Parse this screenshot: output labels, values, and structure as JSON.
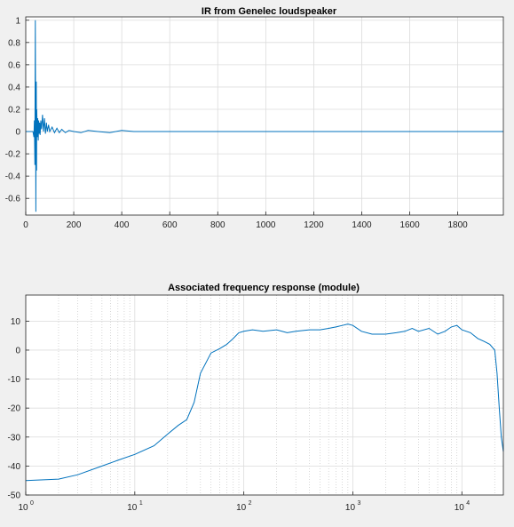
{
  "chart_data": [
    {
      "type": "line",
      "title": "IR from Genelec loudspeaker",
      "xlabel": "",
      "ylabel": "",
      "xlim": [
        0,
        1990
      ],
      "ylim": [
        -0.75,
        1.03
      ],
      "xticks": [
        0,
        200,
        400,
        600,
        800,
        1000,
        1200,
        1400,
        1600,
        1800
      ],
      "xtick_labels": [
        "0",
        "200",
        "400",
        "600",
        "800",
        "1000",
        "1200",
        "1400",
        "1600",
        "1800"
      ],
      "yticks": [
        1,
        0.8,
        0.6,
        0.4,
        0.2,
        0,
        -0.2,
        -0.4,
        -0.6
      ],
      "ytick_labels": [
        "1",
        "0.8",
        "0.6",
        "0.4",
        "0.2",
        "0",
        "-0.2",
        "-0.4",
        "-0.6"
      ],
      "grid": true,
      "line_color": "#0072bd",
      "series": [
        {
          "x": [
            0,
            30,
            34,
            36,
            38,
            39,
            40,
            41,
            42,
            43,
            44,
            45,
            46,
            48,
            50,
            52,
            54,
            56,
            58,
            60,
            63,
            66,
            70,
            74,
            78,
            82,
            86,
            90,
            95,
            100,
            110,
            120,
            130,
            140,
            150,
            165,
            180,
            200,
            230,
            260,
            300,
            350,
            400,
            450,
            500,
            600,
            800,
            1000,
            1400,
            1990
          ],
          "y": [
            0,
            0,
            -0.05,
            0.1,
            -0.3,
            0.3,
            1.0,
            0.2,
            -0.72,
            -0.2,
            0.45,
            -0.35,
            0.2,
            -0.05,
            0.12,
            -0.08,
            0.1,
            -0.02,
            0.08,
            -0.03,
            0.1,
            0.02,
            0.15,
            0.0,
            0.12,
            -0.02,
            0.08,
            0.0,
            0.06,
            0.0,
            0.04,
            -0.01,
            0.03,
            -0.01,
            0.02,
            -0.01,
            0.01,
            0.0,
            -0.01,
            0.01,
            0.0,
            -0.01,
            0.01,
            0.0,
            0.0,
            0.0,
            0.0,
            0.0,
            0.0,
            0.0
          ]
        }
      ]
    },
    {
      "type": "line",
      "title": "Associated frequency response (module)",
      "xlabel": "",
      "ylabel": "",
      "xscale": "log",
      "xlim": [
        1,
        24000
      ],
      "ylim": [
        -50,
        19
      ],
      "xticks": [
        1,
        10,
        100,
        1000,
        10000
      ],
      "xtick_labels": [
        {
          "base": "10",
          "exp": "0"
        },
        {
          "base": "10",
          "exp": "1"
        },
        {
          "base": "10",
          "exp": "2"
        },
        {
          "base": "10",
          "exp": "3"
        },
        {
          "base": "10",
          "exp": "4"
        }
      ],
      "yticks": [
        10,
        0,
        -10,
        -20,
        -30,
        -40,
        -50
      ],
      "ytick_labels": [
        "10",
        "0",
        "-10",
        "-20",
        "-30",
        "-40",
        "-50"
      ],
      "grid": true,
      "line_color": "#0072bd",
      "series": [
        {
          "x": [
            1,
            2,
            3,
            5,
            7,
            10,
            15,
            20,
            25,
            30,
            35,
            40,
            50,
            60,
            70,
            80,
            90,
            100,
            120,
            150,
            200,
            250,
            300,
            400,
            500,
            600,
            700,
            800,
            900,
            1000,
            1200,
            1500,
            2000,
            2500,
            3000,
            3500,
            4000,
            5000,
            6000,
            7000,
            8000,
            9000,
            10000,
            12000,
            14000,
            16000,
            18000,
            20000,
            21000,
            22000,
            23000,
            24000
          ],
          "y": [
            -45,
            -44.5,
            -43,
            -40,
            -38,
            -36,
            -33,
            -29,
            -26,
            -24,
            -18,
            -8,
            -1,
            0.5,
            2,
            4,
            6,
            6.5,
            7,
            6.5,
            7,
            6,
            6.5,
            7,
            7,
            7.5,
            8,
            8.5,
            9,
            8.5,
            6.5,
            5.5,
            5.5,
            6,
            6.5,
            7.5,
            6.5,
            7.5,
            5.5,
            6.5,
            8,
            8.5,
            7,
            6,
            4,
            3,
            2,
            0,
            -8,
            -20,
            -30,
            -35
          ]
        }
      ]
    }
  ]
}
